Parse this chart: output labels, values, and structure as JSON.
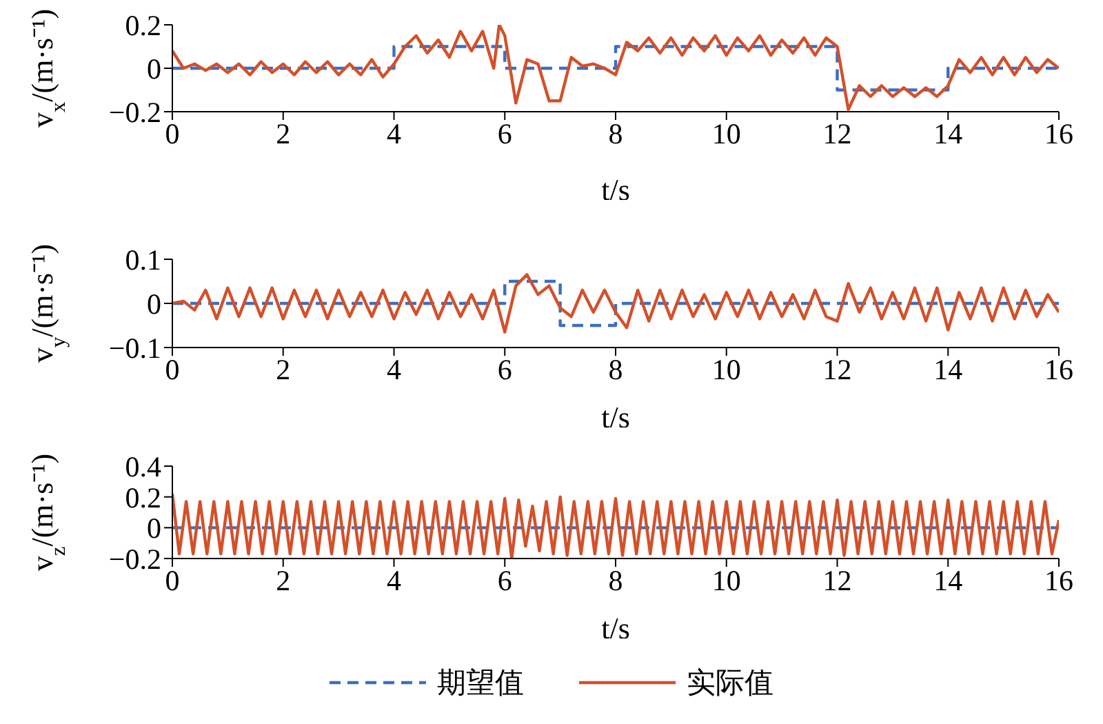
{
  "chart_data": [
    {
      "type": "line",
      "xlabel": "t/s",
      "ylabel": "v$_{x}$/(m·s⁻¹)",
      "xlim": [
        0,
        16
      ],
      "xticks": [
        0,
        2,
        4,
        6,
        8,
        10,
        12,
        14,
        16
      ],
      "ylim": [
        -0.2,
        0.2
      ],
      "yticks": [
        -0.2,
        0,
        0.2
      ],
      "legend": false,
      "marker": "none",
      "series": [
        {
          "color": "#3a6fc4",
          "line_style": "dashed",
          "x": [
            0,
            4,
            4,
            6,
            6,
            8,
            8,
            12,
            12,
            14,
            14,
            16
          ],
          "values": [
            0,
            0,
            0.1,
            0.1,
            0,
            0,
            0.1,
            0.1,
            -0.1,
            -0.1,
            0,
            0
          ]
        },
        {
          "color": "#d4502a",
          "line_style": "solid",
          "x": [
            0,
            0.2,
            0.4,
            0.6,
            0.8,
            1.0,
            1.2,
            1.4,
            1.6,
            1.8,
            2.0,
            2.2,
            2.4,
            2.6,
            2.8,
            3.0,
            3.2,
            3.4,
            3.6,
            3.8,
            4.0,
            4.2,
            4.4,
            4.6,
            4.8,
            5.0,
            5.2,
            5.4,
            5.6,
            5.8,
            5.9,
            6.0,
            6.2,
            6.4,
            6.6,
            6.8,
            7.0,
            7.2,
            7.4,
            7.6,
            7.8,
            8.0,
            8.2,
            8.4,
            8.6,
            8.8,
            9.0,
            9.2,
            9.4,
            9.6,
            9.8,
            10.0,
            10.2,
            10.4,
            10.6,
            10.8,
            11.0,
            11.2,
            11.4,
            11.6,
            11.8,
            12.0,
            12.2,
            12.4,
            12.6,
            12.8,
            13.0,
            13.2,
            13.4,
            13.6,
            13.8,
            14.0,
            14.2,
            14.4,
            14.6,
            14.8,
            15.0,
            15.2,
            15.4,
            15.6,
            15.8,
            16.0
          ],
          "values": [
            0.08,
            0,
            0.02,
            -0.01,
            0.02,
            -0.02,
            0.02,
            -0.03,
            0.03,
            -0.02,
            0.02,
            -0.03,
            0.03,
            -0.02,
            0.03,
            -0.03,
            0.02,
            -0.03,
            0.04,
            -0.04,
            0.02,
            0.1,
            0.15,
            0.07,
            0.13,
            0.05,
            0.17,
            0.08,
            0.17,
            0,
            0.2,
            0.15,
            -0.16,
            0.04,
            0.02,
            -0.15,
            -0.15,
            0.05,
            0.01,
            0.02,
            0,
            -0.03,
            0.12,
            0.08,
            0.14,
            0.07,
            0.14,
            0.06,
            0.14,
            0.08,
            0.15,
            0.06,
            0.14,
            0.08,
            0.15,
            0.06,
            0.13,
            0.07,
            0.14,
            0.06,
            0.14,
            0.1,
            -0.19,
            -0.08,
            -0.13,
            -0.08,
            -0.13,
            -0.09,
            -0.13,
            -0.09,
            -0.13,
            -0.08,
            0.04,
            -0.02,
            0.05,
            -0.03,
            0.05,
            -0.03,
            0.05,
            -0.02,
            0.04,
            0
          ]
        }
      ]
    },
    {
      "type": "line",
      "xlabel": "t/s",
      "ylabel": "v$_{y}$/(m·s⁻¹)",
      "xlim": [
        0,
        16
      ],
      "xticks": [
        0,
        2,
        4,
        6,
        8,
        10,
        12,
        14,
        16
      ],
      "ylim": [
        -0.1,
        0.1
      ],
      "yticks": [
        -0.1,
        0,
        0.1
      ],
      "legend": false,
      "marker": "none",
      "series": [
        {
          "color": "#3a6fc4",
          "line_style": "dashed",
          "x": [
            0,
            6,
            6,
            7,
            7,
            8,
            8,
            16
          ],
          "values": [
            0,
            0,
            0.05,
            0.05,
            -0.05,
            -0.05,
            0,
            0
          ]
        },
        {
          "color": "#d4502a",
          "line_style": "solid",
          "x": [
            0,
            0.2,
            0.4,
            0.6,
            0.8,
            1.0,
            1.2,
            1.4,
            1.6,
            1.8,
            2.0,
            2.2,
            2.4,
            2.6,
            2.8,
            3.0,
            3.2,
            3.4,
            3.6,
            3.8,
            4.0,
            4.2,
            4.4,
            4.6,
            4.8,
            5.0,
            5.2,
            5.4,
            5.6,
            5.8,
            6.0,
            6.2,
            6.4,
            6.6,
            6.8,
            7.0,
            7.2,
            7.4,
            7.6,
            7.8,
            8.0,
            8.2,
            8.4,
            8.6,
            8.8,
            9.0,
            9.2,
            9.4,
            9.6,
            9.8,
            10.0,
            10.2,
            10.4,
            10.6,
            10.8,
            11.0,
            11.2,
            11.4,
            11.6,
            11.8,
            12.0,
            12.2,
            12.4,
            12.6,
            12.8,
            13.0,
            13.2,
            13.4,
            13.6,
            13.8,
            14.0,
            14.2,
            14.4,
            14.6,
            14.8,
            15.0,
            15.2,
            15.4,
            15.6,
            15.8,
            16.0
          ],
          "values": [
            0,
            0.005,
            -0.015,
            0.03,
            -0.035,
            0.035,
            -0.03,
            0.035,
            -0.03,
            0.035,
            -0.035,
            0.03,
            -0.03,
            0.03,
            -0.035,
            0.03,
            -0.03,
            0.025,
            -0.03,
            0.03,
            -0.035,
            0.025,
            -0.025,
            0.03,
            -0.035,
            0.025,
            -0.03,
            0.02,
            -0.035,
            0.03,
            -0.065,
            0.04,
            0.065,
            0.02,
            0.04,
            -0.01,
            -0.03,
            0.03,
            -0.02,
            0.03,
            -0.02,
            -0.055,
            0.03,
            -0.04,
            0.03,
            -0.035,
            0.03,
            -0.03,
            0.02,
            -0.035,
            0.025,
            -0.03,
            0.03,
            -0.035,
            0.025,
            -0.03,
            0.02,
            -0.035,
            0.03,
            -0.03,
            -0.04,
            0.045,
            -0.02,
            0.035,
            -0.035,
            0.025,
            -0.035,
            0.035,
            -0.04,
            0.035,
            -0.06,
            0.025,
            -0.035,
            0.035,
            -0.04,
            0.035,
            -0.035,
            0.03,
            -0.03,
            0.02,
            -0.02
          ]
        }
      ]
    },
    {
      "type": "line",
      "xlabel": "t/s",
      "ylabel": "v$_{z}$/(m·s⁻¹)",
      "xlim": [
        0,
        16
      ],
      "xticks": [
        0,
        2,
        4,
        6,
        8,
        10,
        12,
        14,
        16
      ],
      "ylim": [
        -0.2,
        0.4
      ],
      "yticks": [
        -0.2,
        0,
        0.2,
        0.4
      ],
      "legend": "bottom",
      "marker": "none",
      "series": [
        {
          "name": "期望值",
          "color": "#3a6fc4",
          "line_style": "dashed",
          "x": [
            0,
            16
          ],
          "values": [
            0,
            0
          ]
        },
        {
          "name": "实际值",
          "color": "#d4502a",
          "line_style": "solid",
          "x": [
            0,
            0.125,
            0.25,
            0.375,
            0.5,
            0.625,
            0.75,
            0.875,
            1,
            1.125,
            1.25,
            1.375,
            1.5,
            1.625,
            1.75,
            1.875,
            2,
            2.125,
            2.25,
            2.375,
            2.5,
            2.625,
            2.75,
            2.875,
            3,
            3.125,
            3.25,
            3.375,
            3.5,
            3.625,
            3.75,
            3.875,
            4,
            4.125,
            4.25,
            4.375,
            4.5,
            4.625,
            4.75,
            4.875,
            5,
            5.125,
            5.25,
            5.375,
            5.5,
            5.625,
            5.75,
            5.875,
            6,
            6.125,
            6.25,
            6.375,
            6.5,
            6.625,
            6.75,
            6.875,
            7,
            7.125,
            7.25,
            7.375,
            7.5,
            7.625,
            7.75,
            7.875,
            8,
            8.125,
            8.25,
            8.375,
            8.5,
            8.625,
            8.75,
            8.875,
            9,
            9.125,
            9.25,
            9.375,
            9.5,
            9.625,
            9.75,
            9.875,
            10,
            10.125,
            10.25,
            10.375,
            10.5,
            10.625,
            10.75,
            10.875,
            11,
            11.125,
            11.25,
            11.375,
            11.5,
            11.625,
            11.75,
            11.875,
            12,
            12.125,
            12.25,
            12.375,
            12.5,
            12.625,
            12.75,
            12.875,
            13,
            13.125,
            13.25,
            13.375,
            13.5,
            13.625,
            13.75,
            13.875,
            14,
            14.125,
            14.25,
            14.375,
            14.5,
            14.625,
            14.75,
            14.875,
            15,
            15.125,
            15.25,
            15.375,
            15.5,
            15.625,
            15.75,
            15.875,
            16
          ],
          "values": [
            0.22,
            -0.17,
            0.17,
            -0.17,
            0.17,
            -0.17,
            0.17,
            -0.17,
            0.17,
            -0.17,
            0.17,
            -0.17,
            0.17,
            -0.17,
            0.17,
            -0.17,
            0.17,
            -0.17,
            0.17,
            -0.17,
            0.17,
            -0.17,
            0.17,
            -0.17,
            0.17,
            -0.17,
            0.17,
            -0.17,
            0.17,
            -0.17,
            0.17,
            -0.17,
            0.17,
            -0.17,
            0.17,
            -0.17,
            0.17,
            -0.17,
            0.17,
            -0.17,
            0.17,
            -0.17,
            0.17,
            -0.17,
            0.17,
            -0.17,
            0.17,
            -0.17,
            0.19,
            -0.2,
            0.18,
            -0.12,
            0.14,
            -0.15,
            0.17,
            -0.17,
            0.2,
            -0.18,
            0.17,
            -0.17,
            0.17,
            -0.17,
            0.17,
            -0.17,
            0.19,
            -0.18,
            0.17,
            -0.17,
            0.17,
            -0.17,
            0.17,
            -0.17,
            0.17,
            -0.17,
            0.17,
            -0.17,
            0.17,
            -0.17,
            0.17,
            -0.17,
            0.17,
            -0.17,
            0.17,
            -0.17,
            0.17,
            -0.17,
            0.17,
            -0.17,
            0.17,
            -0.17,
            0.17,
            -0.17,
            0.17,
            -0.17,
            0.17,
            -0.17,
            0.18,
            -0.18,
            0.17,
            -0.17,
            0.17,
            -0.17,
            0.17,
            -0.17,
            0.17,
            -0.17,
            0.17,
            -0.17,
            0.17,
            -0.17,
            0.17,
            -0.17,
            0.18,
            -0.17,
            0.17,
            -0.17,
            0.17,
            -0.17,
            0.17,
            -0.17,
            0.17,
            -0.17,
            0.17,
            -0.17,
            0.17,
            -0.17,
            0.17,
            -0.17,
            0.05
          ]
        }
      ]
    }
  ]
}
